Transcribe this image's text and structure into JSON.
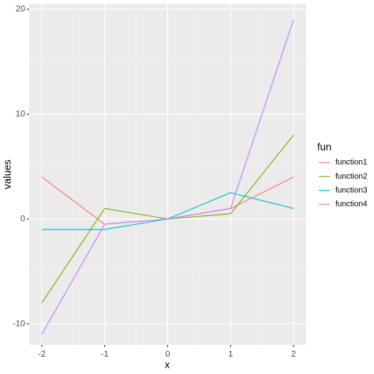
{
  "chart_data": {
    "type": "line",
    "x_label": "x",
    "y_label": "values",
    "x": [
      -2,
      -1,
      0,
      1,
      2
    ],
    "series": [
      {
        "name": "function1",
        "color": "#F8766D",
        "values": [
          4,
          -0.5,
          0,
          1,
          4
        ]
      },
      {
        "name": "function2",
        "color": "#7CAE00",
        "values": [
          -8,
          1,
          0,
          0.5,
          8
        ]
      },
      {
        "name": "function3",
        "color": "#00BFC4",
        "values": [
          -1,
          -1,
          0,
          2.5,
          1
        ]
      },
      {
        "name": "function4",
        "color": "#C77CFF",
        "values": [
          -11,
          -0.5,
          0,
          1,
          19
        ]
      }
    ],
    "legend_title": "fun",
    "legend_position": "right",
    "xlim": [
      -2.2,
      2.2
    ],
    "xticks": [
      -2,
      -1,
      0,
      1,
      2
    ],
    "ylim": [
      -12,
      20.5
    ],
    "yticks": [
      -10,
      0,
      10,
      20
    ],
    "grid": true
  }
}
